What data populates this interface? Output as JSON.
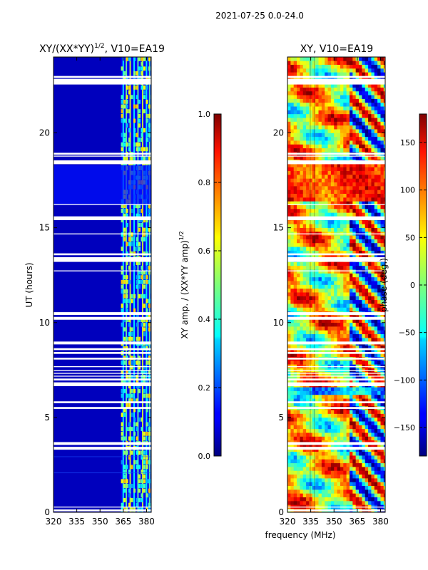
{
  "figure": {
    "suptitle": "2021-07-25 0.0-24.0",
    "xlabel_shared": "frequency (MHz)"
  },
  "chart_data": [
    {
      "type": "heatmap",
      "title_main": "XY/(XX*YY)",
      "title_exp": "1/2",
      "title_tail": ", V10=EA19",
      "ylabel": "UT (hours)",
      "xlim": [
        320,
        383
      ],
      "ylim": [
        0,
        24
      ],
      "xticks": [
        320,
        335,
        350,
        365,
        380
      ],
      "yticks": [
        0,
        5,
        10,
        15,
        20
      ],
      "colormap": "jet",
      "colorbar": {
        "label_main": "XY amp. / (XX*YY amp)",
        "label_exp": "1/2",
        "range": [
          0.0,
          1.0
        ],
        "ticks": [
          0.0,
          0.2,
          0.4,
          0.6,
          0.8,
          1.0
        ],
        "tick_labels": [
          "0.0",
          "0.2",
          "0.4",
          "0.6",
          "0.8",
          "1.0"
        ]
      },
      "flagged_ut_gaps": [
        [
          0.05,
          0.15
        ],
        [
          0.25,
          0.3
        ],
        [
          3.3,
          3.45
        ],
        [
          3.55,
          3.7
        ],
        [
          5.45,
          5.55
        ],
        [
          5.75,
          5.85
        ],
        [
          6.65,
          6.85
        ],
        [
          6.95,
          7.05
        ],
        [
          7.15,
          7.2
        ],
        [
          7.3,
          7.35
        ],
        [
          7.45,
          7.5
        ],
        [
          7.65,
          7.7
        ],
        [
          8.05,
          8.15
        ],
        [
          8.35,
          8.45
        ],
        [
          8.55,
          8.65
        ],
        [
          8.85,
          9.0
        ],
        [
          10.15,
          10.3
        ],
        [
          10.4,
          10.55
        ],
        [
          12.7,
          12.75
        ],
        [
          13.2,
          13.45
        ],
        [
          13.55,
          13.65
        ],
        [
          14.65,
          14.7
        ],
        [
          15.4,
          15.6
        ],
        [
          16.2,
          16.25
        ],
        [
          18.35,
          18.55
        ],
        [
          18.75,
          18.8
        ],
        [
          18.85,
          18.95
        ],
        [
          22.55,
          22.85
        ],
        [
          22.9,
          23.0
        ]
      ]
    },
    {
      "type": "heatmap",
      "title": "XY, V10=EA19",
      "ylabel": "",
      "xlim": [
        320,
        383
      ],
      "ylim": [
        0,
        24
      ],
      "xticks": [
        320,
        335,
        350,
        365,
        380
      ],
      "yticks": [
        0,
        5,
        10,
        15,
        20
      ],
      "colormap": "jet",
      "colorbar": {
        "label": "phase (deg.)",
        "range": [
          -180,
          180
        ],
        "ticks": [
          -150,
          -100,
          -50,
          0,
          50,
          100,
          150
        ],
        "tick_labels": [
          "−150",
          "−100",
          "−50",
          "0",
          "50",
          "100",
          "150"
        ]
      },
      "flagged_ut_gaps": [
        [
          0.05,
          0.15
        ],
        [
          0.25,
          0.3
        ],
        [
          3.3,
          3.45
        ],
        [
          3.55,
          3.7
        ],
        [
          5.45,
          5.55
        ],
        [
          5.75,
          5.85
        ],
        [
          6.65,
          6.85
        ],
        [
          6.95,
          7.05
        ],
        [
          7.15,
          7.2
        ],
        [
          7.3,
          7.35
        ],
        [
          7.45,
          7.5
        ],
        [
          7.65,
          7.7
        ],
        [
          8.05,
          8.15
        ],
        [
          8.35,
          8.45
        ],
        [
          8.55,
          8.65
        ],
        [
          8.85,
          9.0
        ],
        [
          10.15,
          10.3
        ],
        [
          10.4,
          10.55
        ],
        [
          12.7,
          12.75
        ],
        [
          13.2,
          13.45
        ],
        [
          13.55,
          13.65
        ],
        [
          14.65,
          14.7
        ],
        [
          15.4,
          15.6
        ],
        [
          16.2,
          16.25
        ],
        [
          18.35,
          18.55
        ],
        [
          18.75,
          18.8
        ],
        [
          18.85,
          18.95
        ],
        [
          22.55,
          22.85
        ],
        [
          22.9,
          23.0
        ]
      ]
    }
  ]
}
